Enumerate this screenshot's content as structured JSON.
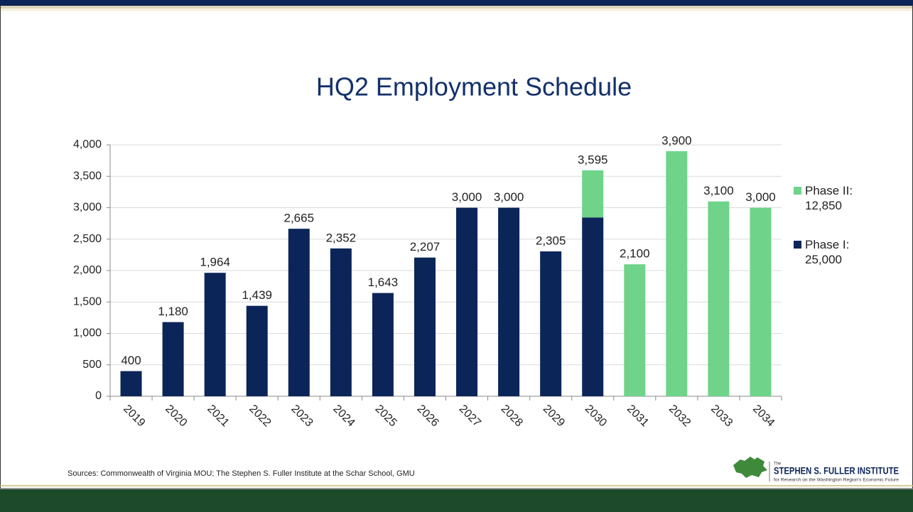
{
  "chart_data": {
    "type": "stacked_bar",
    "title": "HQ2 Employment Schedule",
    "categories": [
      "2019",
      "2020",
      "2021",
      "2022",
      "2023",
      "2024",
      "2025",
      "2026",
      "2027",
      "2028",
      "2029",
      "2030",
      "2031",
      "2032",
      "2033",
      "2034"
    ],
    "series": [
      {
        "name": "Phase I: 25,000",
        "color": "#0b2559",
        "values": [
          400,
          1180,
          1964,
          1439,
          2665,
          2352,
          1643,
          2207,
          3000,
          3000,
          2305,
          2845,
          null,
          null,
          null,
          null
        ]
      },
      {
        "name": "Phase II: 12,850",
        "color": "#6fd38a",
        "values": [
          null,
          null,
          null,
          null,
          null,
          null,
          null,
          null,
          null,
          null,
          null,
          750,
          2100,
          3900,
          3100,
          3000
        ]
      }
    ],
    "totals": [
      400,
      1180,
      1964,
      1439,
      2665,
      2352,
      1643,
      2207,
      3000,
      3000,
      2305,
      3595,
      2100,
      3900,
      3100,
      3000
    ],
    "value_labels": [
      "400",
      "1,180",
      "1,964",
      "1,439",
      "2,665",
      "2,352",
      "1,643",
      "2,207",
      "3,000",
      "3,000",
      "2,305",
      "3,595",
      "2,100",
      "3,900",
      "3,100",
      "3,000"
    ],
    "ylim": [
      0,
      4000
    ],
    "yticks": [
      0,
      500,
      {
        "value": 1000,
        "label": "1,000"
      },
      {
        "value": 1500,
        "label": "1,500"
      },
      {
        "value": 2000,
        "label": "2,000"
      },
      {
        "value": 2500,
        "label": "2,500"
      },
      {
        "value": 3000,
        "label": "3,000"
      },
      {
        "value": 3500,
        "label": "3,500"
      },
      {
        "value": 4000,
        "label": "4,000"
      }
    ],
    "grid": true,
    "legend": "right"
  },
  "source": "Sources: Commonwealth of Virginia MOU; The Stephen S. Fuller Institute at the Schar School, GMU",
  "logo": {
    "small": "The",
    "name": "STEPHEN S. FULLER INSTITUTE",
    "tagline": "for Research on the Washington Region's Economic Future"
  }
}
